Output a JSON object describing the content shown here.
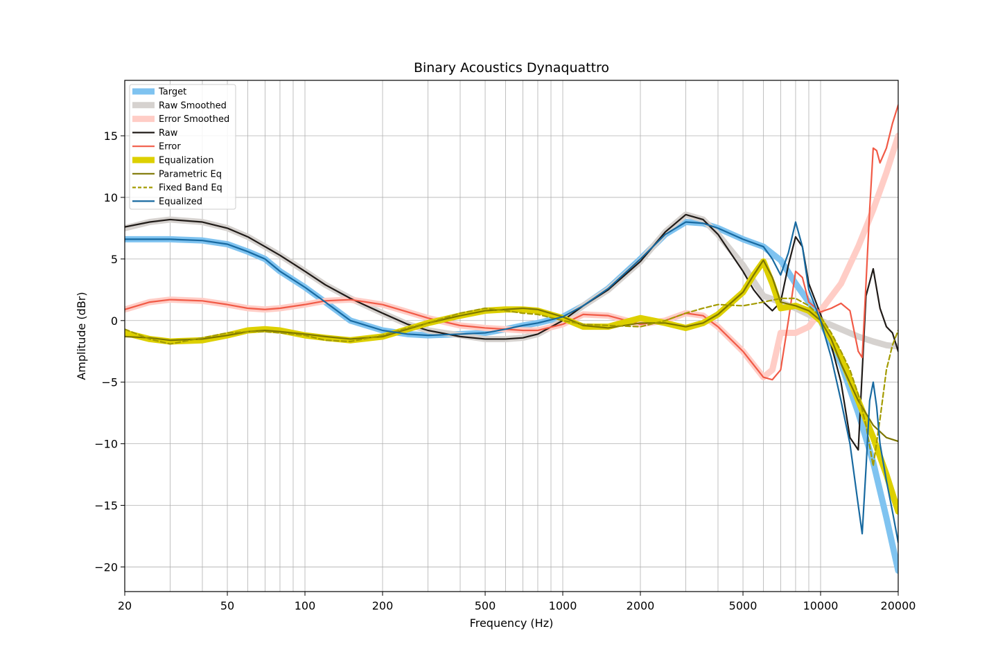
{
  "chart_data": {
    "type": "line",
    "title": "Binary Acoustics Dynaquattro",
    "xlabel": "Frequency (Hz)",
    "ylabel": "Amplitude (dBr)",
    "xscale": "log",
    "xlim": [
      20,
      20000
    ],
    "ylim": [
      -22,
      19.5
    ],
    "grid": true,
    "legend_position": "top-left",
    "x_tick_labels": [
      "20",
      "50",
      "100",
      "200",
      "500",
      "1000",
      "2000",
      "5000",
      "10000",
      "20000"
    ],
    "y_tick_labels": [
      "15",
      "10",
      "5",
      "0",
      "−5",
      "−10",
      "−15",
      "−20"
    ],
    "series": [
      {
        "name": "Target",
        "color": "#7fc3f0",
        "style": "thick",
        "x": [
          20,
          30,
          40,
          50,
          60,
          70,
          80,
          100,
          120,
          150,
          200,
          250,
          300,
          400,
          500,
          600,
          700,
          800,
          1000,
          1200,
          1500,
          2000,
          2500,
          3000,
          3500,
          4000,
          5000,
          6000,
          7000,
          8000,
          9000,
          10000,
          12000,
          14000,
          16000,
          18000,
          20000
        ],
        "y": [
          6.6,
          6.6,
          6.5,
          6.2,
          5.6,
          5.0,
          4.0,
          2.7,
          1.5,
          0.0,
          -0.8,
          -1.1,
          -1.2,
          -1.1,
          -1.0,
          -0.7,
          -0.4,
          -0.2,
          0.3,
          1.2,
          2.6,
          5.0,
          7.0,
          8.0,
          7.9,
          7.5,
          6.6,
          6.0,
          4.9,
          3.0,
          1.5,
          0.0,
          -3.5,
          -7.5,
          -11.5,
          -16.0,
          -20.3
        ]
      },
      {
        "name": "Raw Smoothed",
        "color": "#d6d2cf",
        "style": "thick",
        "x": [
          20,
          25,
          30,
          40,
          50,
          60,
          70,
          80,
          100,
          120,
          150,
          200,
          250,
          300,
          400,
          500,
          600,
          700,
          800,
          1000,
          1200,
          1500,
          2000,
          2500,
          3000,
          3500,
          4000,
          5000,
          6000,
          7000,
          8000,
          10000,
          12000,
          14000,
          16000,
          18000,
          20000
        ],
        "y": [
          7.5,
          8.0,
          8.2,
          8.0,
          7.5,
          6.8,
          6.0,
          5.3,
          4.0,
          2.9,
          1.8,
          0.6,
          -0.3,
          -0.8,
          -1.2,
          -1.5,
          -1.5,
          -1.4,
          -1.1,
          0.0,
          1.2,
          2.5,
          4.8,
          7.2,
          8.6,
          8.2,
          7.0,
          4.5,
          2.0,
          1.5,
          1.0,
          0.0,
          -0.7,
          -1.3,
          -1.7,
          -2.0,
          -2.1
        ]
      },
      {
        "name": "Error Smoothed",
        "color": "#ffcdc6",
        "style": "thick",
        "x": [
          20,
          25,
          30,
          40,
          50,
          60,
          70,
          80,
          100,
          120,
          150,
          200,
          250,
          300,
          400,
          500,
          600,
          700,
          800,
          1000,
          1200,
          1500,
          2000,
          2500,
          3000,
          3500,
          4000,
          5000,
          6000,
          6500,
          7000,
          8000,
          9000,
          10000,
          12000,
          14000,
          16000,
          18000,
          20000
        ],
        "y": [
          0.9,
          1.5,
          1.7,
          1.6,
          1.3,
          1.0,
          0.9,
          1.0,
          1.3,
          1.6,
          1.7,
          1.3,
          0.7,
          0.2,
          -0.4,
          -0.6,
          -0.7,
          -0.8,
          -0.8,
          -0.3,
          0.5,
          0.4,
          -0.3,
          0.0,
          0.6,
          0.4,
          -0.5,
          -2.5,
          -4.6,
          -4.0,
          -1.0,
          -1.0,
          -0.5,
          0.8,
          3.0,
          6.0,
          9.0,
          12.0,
          15.0
        ]
      },
      {
        "name": "Raw",
        "color": "#1f1a17",
        "style": "line",
        "x": [
          20,
          25,
          30,
          40,
          50,
          60,
          70,
          80,
          100,
          120,
          150,
          200,
          250,
          300,
          400,
          500,
          600,
          700,
          800,
          1000,
          1200,
          1500,
          2000,
          2500,
          3000,
          3500,
          4000,
          5000,
          5500,
          6000,
          6500,
          7000,
          7500,
          8000,
          8500,
          9000,
          10000,
          11000,
          12000,
          13000,
          14000,
          15000,
          16000,
          17000,
          18000,
          19000,
          20000
        ],
        "y": [
          7.6,
          8.0,
          8.2,
          8.0,
          7.5,
          6.8,
          6.0,
          5.3,
          4.0,
          2.9,
          1.8,
          0.6,
          -0.3,
          -0.8,
          -1.3,
          -1.5,
          -1.5,
          -1.4,
          -1.1,
          0.0,
          1.2,
          2.5,
          4.8,
          7.2,
          8.6,
          8.2,
          7.0,
          4.0,
          2.5,
          1.5,
          0.8,
          1.5,
          4.5,
          6.8,
          6.0,
          3.0,
          0.5,
          -2.0,
          -5.0,
          -9.5,
          -10.5,
          2.0,
          4.2,
          1.0,
          -0.5,
          -1.0,
          -2.5
        ]
      },
      {
        "name": "Error",
        "color": "#f15a46",
        "style": "line",
        "x": [
          20,
          25,
          30,
          40,
          50,
          60,
          70,
          80,
          100,
          120,
          150,
          200,
          250,
          300,
          400,
          500,
          600,
          700,
          800,
          1000,
          1200,
          1500,
          2000,
          2500,
          3000,
          3500,
          4000,
          5000,
          6000,
          6500,
          7000,
          7500,
          8000,
          8500,
          9000,
          10000,
          11000,
          12000,
          13000,
          14000,
          14500,
          15000,
          15500,
          16000,
          16500,
          17000,
          18000,
          19000,
          20000
        ],
        "y": [
          0.9,
          1.5,
          1.7,
          1.6,
          1.3,
          1.0,
          0.9,
          1.0,
          1.3,
          1.6,
          1.7,
          1.3,
          0.7,
          0.2,
          -0.4,
          -0.6,
          -0.7,
          -0.8,
          -0.8,
          -0.3,
          0.5,
          0.4,
          -0.3,
          0.0,
          0.6,
          0.4,
          -0.5,
          -2.5,
          -4.6,
          -4.8,
          -4.0,
          0.0,
          4.0,
          3.5,
          1.5,
          0.7,
          1.0,
          1.4,
          0.8,
          -2.5,
          -3.0,
          3.0,
          9.0,
          14.0,
          13.8,
          12.8,
          14.0,
          16.0,
          17.5
        ]
      },
      {
        "name": "Equalization",
        "color": "#ddd000",
        "style": "thick",
        "x": [
          20,
          25,
          30,
          40,
          50,
          60,
          70,
          80,
          100,
          120,
          150,
          200,
          250,
          300,
          400,
          500,
          600,
          700,
          800,
          1000,
          1200,
          1500,
          2000,
          2500,
          3000,
          3500,
          4000,
          5000,
          5500,
          6000,
          6500,
          7000,
          8000,
          9000,
          10000,
          11000,
          12000,
          14000,
          16000,
          18000,
          20000
        ],
        "y": [
          -1.0,
          -1.5,
          -1.7,
          -1.6,
          -1.2,
          -0.8,
          -0.7,
          -0.8,
          -1.2,
          -1.4,
          -1.6,
          -1.3,
          -0.7,
          -0.2,
          0.4,
          0.8,
          0.9,
          0.9,
          0.8,
          0.2,
          -0.5,
          -0.5,
          0.2,
          -0.2,
          -0.6,
          -0.2,
          0.5,
          2.3,
          3.7,
          4.8,
          3.0,
          1.0,
          1.2,
          0.8,
          0.0,
          -1.5,
          -3.0,
          -6.5,
          -9.5,
          -12.5,
          -15.5
        ]
      },
      {
        "name": "Parametric Eq",
        "color": "#7d7600",
        "style": "line",
        "x": [
          20,
          25,
          30,
          40,
          50,
          60,
          70,
          80,
          100,
          120,
          150,
          200,
          250,
          300,
          400,
          500,
          600,
          700,
          800,
          1000,
          1200,
          1500,
          2000,
          2500,
          3000,
          3500,
          4000,
          5000,
          5500,
          6000,
          6500,
          7000,
          8000,
          9000,
          10000,
          11000,
          12000,
          14000,
          16000,
          18000,
          20000
        ],
        "y": [
          -1.3,
          -1.4,
          -1.6,
          -1.5,
          -1.2,
          -0.9,
          -0.8,
          -0.9,
          -1.1,
          -1.3,
          -1.5,
          -1.3,
          -0.7,
          -0.2,
          0.4,
          0.8,
          0.9,
          1.0,
          0.9,
          0.3,
          -0.4,
          -0.6,
          -0.2,
          -0.2,
          -0.5,
          -0.2,
          0.5,
          2.3,
          3.7,
          4.9,
          3.5,
          1.5,
          1.2,
          0.8,
          0.0,
          -1.5,
          -3.5,
          -6.5,
          -8.5,
          -9.5,
          -9.8
        ]
      },
      {
        "name": "Fixed Band Eq",
        "color": "#a39b00",
        "style": "dashed",
        "x": [
          20,
          25,
          30,
          40,
          50,
          60,
          70,
          80,
          100,
          120,
          150,
          200,
          250,
          300,
          400,
          500,
          600,
          700,
          800,
          1000,
          1200,
          1500,
          2000,
          2500,
          3000,
          3500,
          4000,
          5000,
          6000,
          7000,
          8000,
          9000,
          10000,
          11000,
          12000,
          13000,
          14000,
          15000,
          16000,
          17000,
          18000,
          19000,
          20000
        ],
        "y": [
          -0.7,
          -1.5,
          -1.9,
          -1.4,
          -1.0,
          -0.9,
          -0.9,
          -1.0,
          -1.2,
          -1.6,
          -1.7,
          -1.2,
          -0.6,
          -0.2,
          0.6,
          1.0,
          0.8,
          0.6,
          0.5,
          0.0,
          -0.3,
          -0.4,
          -0.5,
          0.0,
          0.6,
          1.0,
          1.3,
          1.2,
          1.5,
          1.8,
          1.8,
          1.2,
          0.3,
          -1.0,
          -2.5,
          -4.0,
          -6.0,
          -8.5,
          -11.8,
          -8.0,
          -4.0,
          -2.0,
          -0.8
        ]
      },
      {
        "name": "Equalized",
        "color": "#1769a0",
        "style": "line",
        "x": [
          20,
          30,
          40,
          50,
          60,
          70,
          80,
          100,
          120,
          150,
          200,
          250,
          300,
          400,
          500,
          600,
          700,
          800,
          1000,
          1200,
          1500,
          2000,
          2500,
          3000,
          3500,
          4000,
          5000,
          6000,
          6500,
          7000,
          7500,
          8000,
          8500,
          9000,
          10000,
          11000,
          12000,
          13000,
          14000,
          14500,
          15000,
          15500,
          16000,
          16500,
          17000,
          18000,
          19000,
          20000
        ],
        "y": [
          6.6,
          6.6,
          6.5,
          6.2,
          5.6,
          5.0,
          4.0,
          2.7,
          1.5,
          0.0,
          -0.8,
          -1.1,
          -1.2,
          -1.1,
          -1.0,
          -0.7,
          -0.4,
          -0.2,
          0.3,
          1.2,
          2.6,
          5.0,
          7.0,
          8.0,
          7.9,
          7.5,
          6.6,
          6.0,
          5.0,
          3.7,
          5.5,
          8.0,
          6.0,
          2.5,
          0.0,
          -3.0,
          -6.5,
          -10.0,
          -15.0,
          -17.3,
          -12.0,
          -6.5,
          -5.0,
          -7.0,
          -10.0,
          -13.0,
          -15.5,
          -18.0
        ]
      }
    ]
  }
}
